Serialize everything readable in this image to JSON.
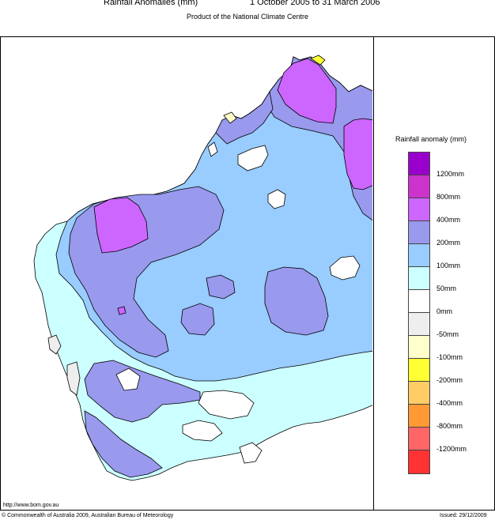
{
  "header": {
    "title_left": "Rainfall Anomalies (mm)",
    "title_right": "1 October 2005 to 31 March 2006",
    "subtitle": "Product of the National Climate Centre"
  },
  "legend": {
    "title": "Rainfall anomaly (mm)",
    "swatch_colors": [
      "#9900cc",
      "#cc33cc",
      "#cc66ff",
      "#9999ee",
      "#99ccff",
      "#ccffff",
      "#ffffff",
      "#eeeeee",
      "#ffffcc",
      "#ffff33",
      "#ffcc66",
      "#ff9933",
      "#ff6666",
      "#ff3333"
    ],
    "labels": [
      "1200mm",
      "800mm",
      "400mm",
      "200mm",
      "100mm",
      "50mm",
      "0mm",
      "-50mm",
      "-100mm",
      "-200mm",
      "-400mm",
      "-800mm",
      "-1200mm"
    ]
  },
  "footer": {
    "url": "http://www.bom.gov.au",
    "copyright": "© Commonwealth of Australia 2009, Australian Bureau of Meteorology",
    "issued": "Issued: 29/12/2009"
  }
}
